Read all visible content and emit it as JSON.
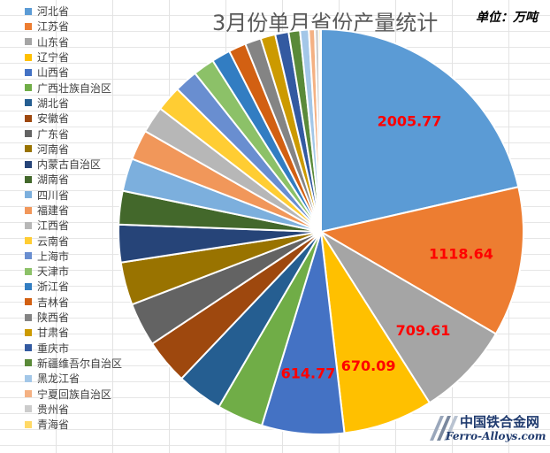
{
  "chart_data": {
    "type": "pie",
    "title": "3月份单月省份产量统计",
    "unit_label": "单位：万吨",
    "legend_position": "left",
    "categories": [
      "河北省",
      "江苏省",
      "山东省",
      "辽宁省",
      "山西省",
      "广西壮族自治区",
      "湖北省",
      "安徽省",
      "广东省",
      "河南省",
      "内蒙古自治区",
      "湖南省",
      "四川省",
      "福建省",
      "江西省",
      "云南省",
      "上海市",
      "天津市",
      "浙江省",
      "吉林省",
      "陕西省",
      "甘肃省",
      "重庆市",
      "新疆维吾尔自治区",
      "黑龙江省",
      "宁夏回族自治区",
      "贵州省",
      "青海省"
    ],
    "values": [
      2005.77,
      1118.64,
      709.61,
      670.09,
      614.77,
      345,
      345,
      335,
      325,
      320,
      280,
      250,
      245,
      225,
      200,
      190,
      175,
      160,
      140,
      130,
      120,
      110,
      100,
      85,
      65,
      45,
      30,
      15
    ],
    "data_labels": [
      {
        "category": "河北省",
        "text": "2005.77"
      },
      {
        "category": "江苏省",
        "text": "1118.64"
      },
      {
        "category": "山东省",
        "text": "709.61"
      },
      {
        "category": "辽宁省",
        "text": "670.09"
      },
      {
        "category": "山西省",
        "text": "614.77"
      }
    ],
    "colors": [
      "#5b9bd5",
      "#ed7d31",
      "#a5a5a5",
      "#ffc000",
      "#4472c4",
      "#70ad47",
      "#255e91",
      "#9e480e",
      "#636363",
      "#997300",
      "#264478",
      "#43682b",
      "#7cafdd",
      "#f1975a",
      "#b7b7b7",
      "#ffcd33",
      "#698ed0",
      "#8cc168",
      "#327dc2",
      "#d26012",
      "#848484",
      "#cc9a00",
      "#335aa1",
      "#5a8a39",
      "#a3c7e8",
      "#f4b183",
      "#cccccc",
      "#ffd966"
    ],
    "label_color": "#ff0000"
  },
  "watermark": {
    "name_cn": "中国铁合金网",
    "name_en": "Ferro-Alloys.com"
  }
}
